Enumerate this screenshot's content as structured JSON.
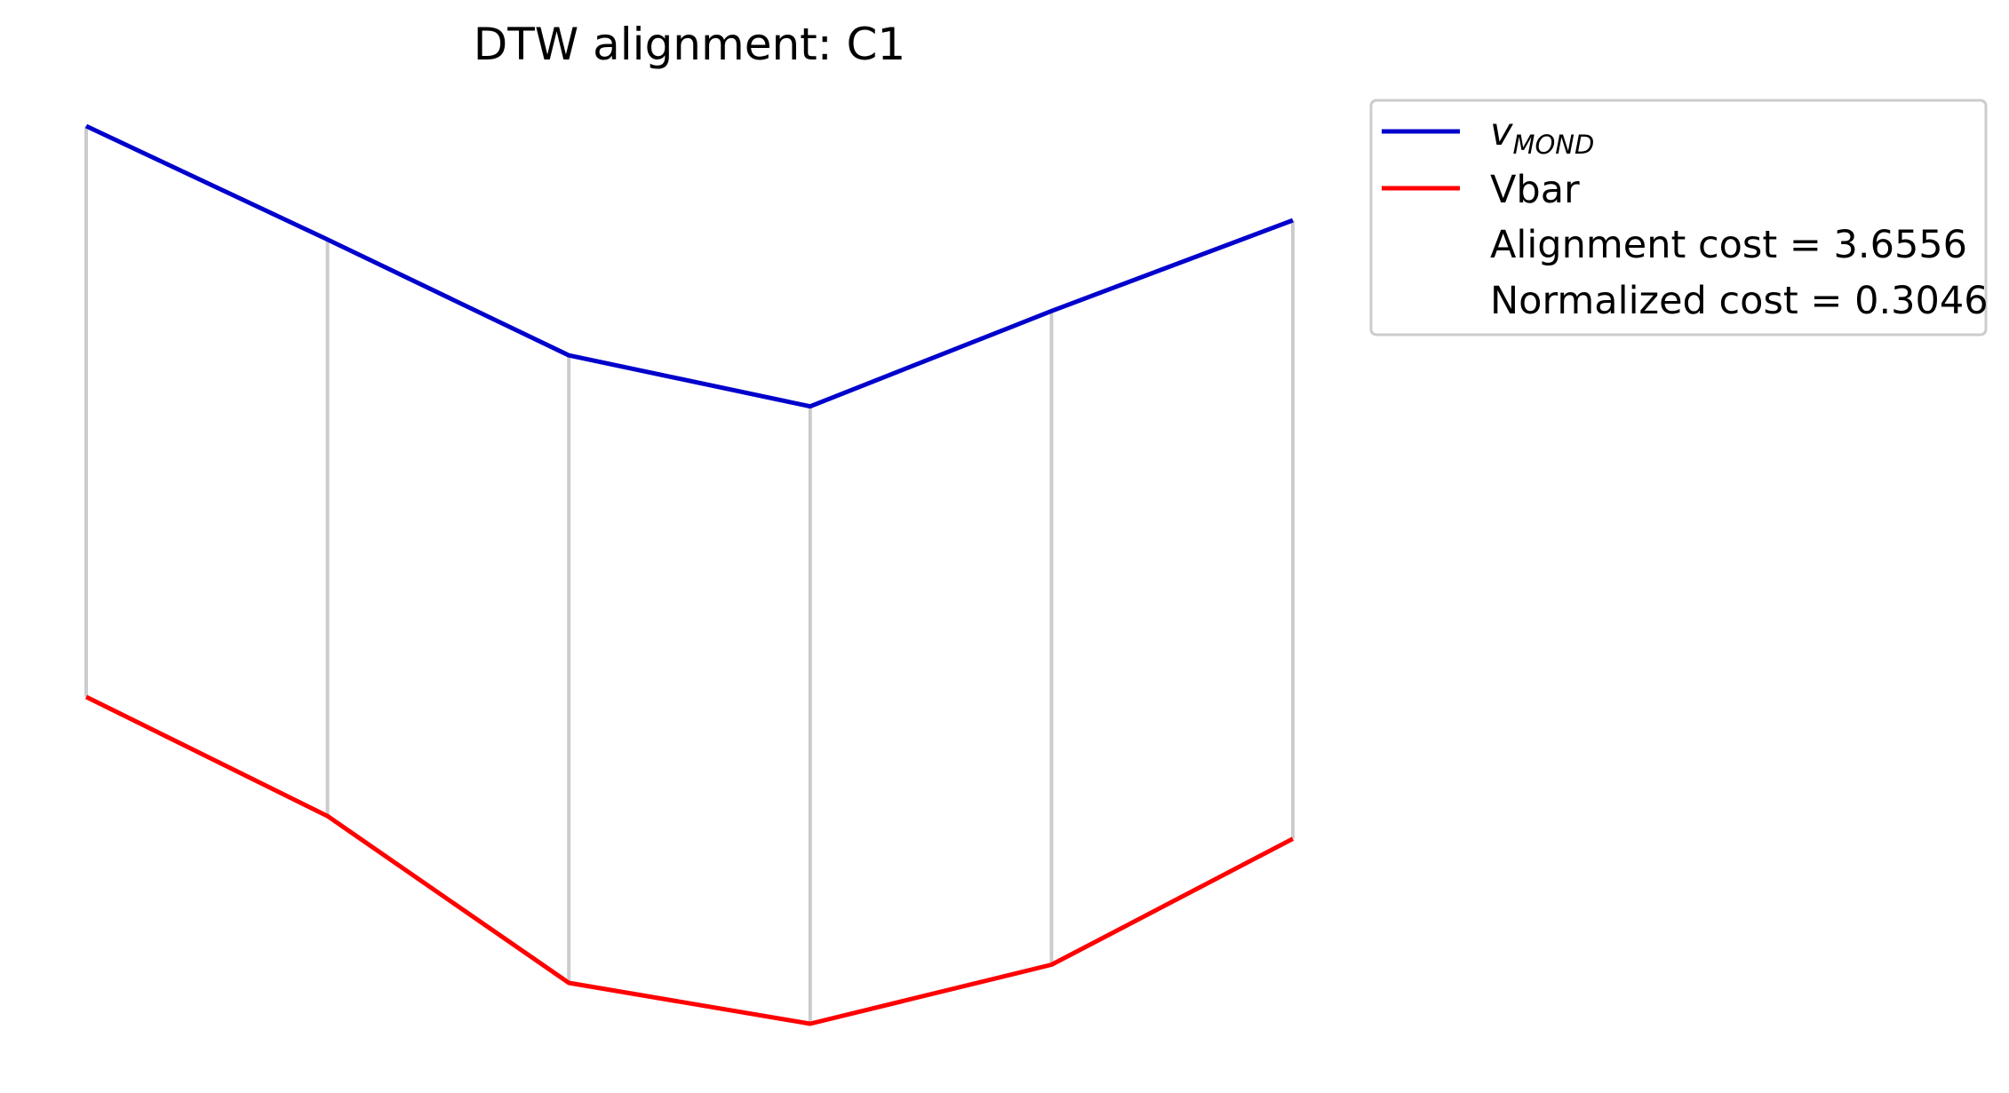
{
  "chart_data": {
    "type": "line",
    "title": "DTW alignment: C1",
    "x": [
      0,
      1,
      2,
      3,
      4,
      5
    ],
    "series": [
      {
        "name": "v_MOND",
        "name_main": "v",
        "name_sub": "MOND",
        "color": "#0000cc",
        "values": [
          5.7,
          4.7,
          3.68,
          3.23,
          4.07,
          4.87
        ]
      },
      {
        "name": "Vbar",
        "color": "#ff0000",
        "values": [
          0.67,
          -0.38,
          -1.85,
          -2.21,
          -1.69,
          -0.58
        ]
      }
    ],
    "alignment_pairs": [
      [
        0,
        0
      ],
      [
        1,
        1
      ],
      [
        2,
        2
      ],
      [
        3,
        3
      ],
      [
        4,
        4
      ],
      [
        5,
        5
      ]
    ],
    "alignment_color": "#cccccc",
    "alignment_cost_label": "Alignment cost = 3.6556",
    "normalized_cost_label": "Normalized cost = 0.3046",
    "alignment_cost": 3.6556,
    "normalized_cost": 0.3046,
    "axes_visible": false,
    "grid": false,
    "legend_position": "outside upper right"
  }
}
